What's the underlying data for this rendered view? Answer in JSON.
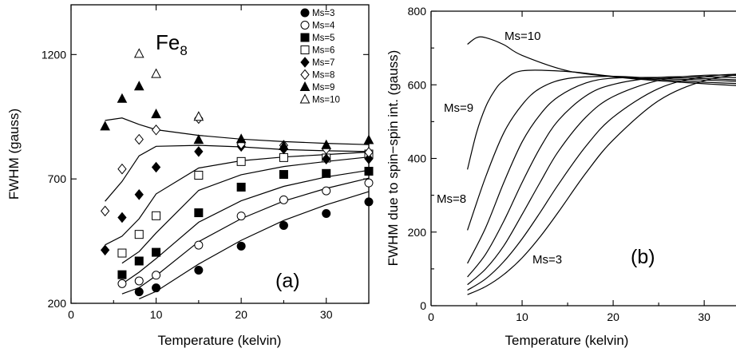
{
  "chart_data": [
    {
      "type": "scatter",
      "panel_label": "(a)",
      "title": "Fe",
      "title_subscript": "8",
      "xlabel": "Temperature (kelvin)",
      "ylabel": "FWHM (gauss)",
      "xlim": [
        0,
        35
      ],
      "ylim": [
        200,
        1400
      ],
      "xticks": [
        "0",
        "10",
        "20",
        "30"
      ],
      "yticks": [
        "200",
        "700",
        "1200"
      ],
      "legend_position": "top-right",
      "series": [
        {
          "name": "Ms=3",
          "marker": "filled-circle",
          "points": [
            [
              8,
              246
            ],
            [
              10,
              262
            ],
            [
              15,
              333
            ],
            [
              20,
              430
            ],
            [
              25,
              513
            ],
            [
              30,
              561
            ],
            [
              35,
              608
            ]
          ]
        },
        {
          "name": "Ms=4",
          "marker": "open-circle",
          "points": [
            [
              6,
              279
            ],
            [
              8,
              290
            ],
            [
              10,
              313
            ],
            [
              15,
              434
            ],
            [
              20,
              551
            ],
            [
              25,
              616
            ],
            [
              30,
              652
            ],
            [
              35,
              684
            ]
          ]
        },
        {
          "name": "Ms=5",
          "marker": "filled-square",
          "points": [
            [
              6,
              315
            ],
            [
              8,
              370
            ],
            [
              10,
              405
            ],
            [
              15,
              564
            ],
            [
              20,
              667
            ],
            [
              25,
              718
            ],
            [
              30,
              722
            ],
            [
              35,
              731
            ]
          ]
        },
        {
          "name": "Ms=6",
          "marker": "open-square",
          "points": [
            [
              6,
              402
            ],
            [
              8,
              477
            ],
            [
              10,
              552
            ],
            [
              15,
              715
            ],
            [
              20,
              770
            ],
            [
              25,
              786
            ],
            [
              30,
              784
            ],
            [
              35,
              800
            ]
          ]
        },
        {
          "name": "Ms=7",
          "marker": "filled-diamond",
          "points": [
            [
              4,
              414
            ],
            [
              6,
              545
            ],
            [
              8,
              637
            ],
            [
              10,
              747
            ],
            [
              15,
              810
            ],
            [
              20,
              831
            ],
            [
              25,
              821
            ],
            [
              30,
              780
            ],
            [
              35,
              781
            ]
          ]
        },
        {
          "name": "Ms=8",
          "marker": "open-diamond",
          "points": [
            [
              4,
              571
            ],
            [
              6,
              740
            ],
            [
              8,
              859
            ],
            [
              10,
              897
            ],
            [
              15,
              943
            ],
            [
              20,
              840
            ],
            [
              25,
              835
            ],
            [
              30,
              820
            ],
            [
              35,
              807
            ]
          ]
        },
        {
          "name": "Ms=9",
          "marker": "filled-triangle",
          "points": [
            [
              4,
              911
            ],
            [
              6,
              1022
            ],
            [
              8,
              1072
            ],
            [
              10,
              960
            ],
            [
              15,
              857
            ],
            [
              20,
              860
            ],
            [
              25,
              832
            ],
            [
              30,
              836
            ],
            [
              35,
              856
            ]
          ]
        },
        {
          "name": "Ms=10",
          "marker": "open-triangle",
          "points": [
            [
              8,
              1203
            ],
            [
              10,
              1122
            ],
            [
              15,
              950
            ]
          ]
        }
      ],
      "fit_curves": [
        {
          "x": [
            8,
            10,
            15,
            20,
            25,
            30,
            35
          ],
          "y": [
            218,
            248,
            358,
            453,
            533,
            596,
            649
          ]
        },
        {
          "x": [
            6,
            8,
            10,
            15,
            20,
            25,
            30,
            35
          ],
          "y": [
            238,
            263,
            311,
            448,
            540,
            611,
            662,
            703
          ]
        },
        {
          "x": [
            6,
            8,
            10,
            15,
            20,
            25,
            30,
            35
          ],
          "y": [
            278,
            325,
            380,
            526,
            612,
            670,
            708,
            735
          ]
        },
        {
          "x": [
            6,
            8,
            10,
            15,
            20,
            25,
            30,
            35
          ],
          "y": [
            361,
            408,
            483,
            654,
            717,
            750,
            770,
            788
          ]
        },
        {
          "x": [
            4,
            6,
            8,
            10,
            15,
            20,
            25,
            30,
            35
          ],
          "y": [
            435,
            470,
            540,
            640,
            744,
            773,
            788,
            798,
            808
          ]
        },
        {
          "x": [
            4,
            6,
            8,
            10,
            15,
            20,
            25,
            30,
            35
          ],
          "y": [
            610,
            690,
            793,
            831,
            835,
            829,
            818,
            813,
            810
          ]
        },
        {
          "x": [
            4,
            6,
            8,
            10,
            15,
            20,
            25,
            30,
            35
          ],
          "y": [
            935,
            945,
            919,
            898,
            875,
            860,
            850,
            843,
            838
          ]
        }
      ]
    },
    {
      "type": "line",
      "panel_label": "(b)",
      "xlabel": "Temperature (kelvin)",
      "ylabel": "FWHM due to spin−spin int. (gauss)",
      "xlim": [
        0,
        35
      ],
      "ylim": [
        0,
        800
      ],
      "xticks": [
        "0",
        "10",
        "20",
        "30"
      ],
      "yticks": [
        "0",
        "200",
        "400",
        "600",
        "800"
      ],
      "curve_labels": [
        "Ms=10",
        "Ms=9",
        "Ms=8",
        "Ms=3"
      ],
      "series": [
        {
          "name": "Ms=10",
          "x": [
            4,
            5,
            6,
            8,
            10,
            15,
            20,
            25,
            30,
            35
          ],
          "y": [
            710,
            728,
            728,
            709,
            680,
            638,
            622,
            611,
            603,
            596
          ]
        },
        {
          "name": "Ms=9",
          "x": [
            4,
            5,
            6,
            7,
            8,
            10,
            15,
            20,
            25,
            30,
            35
          ],
          "y": [
            370,
            470,
            540,
            585,
            612,
            638,
            636,
            623,
            614,
            607,
            602
          ]
        },
        {
          "name": "Ms=8",
          "x": [
            4,
            6,
            8,
            10,
            12,
            15,
            20,
            25,
            30,
            35
          ],
          "y": [
            205,
            350,
            470,
            546,
            591,
            617,
            623,
            617,
            613,
            608
          ]
        },
        {
          "name": "Ms=7",
          "x": [
            4,
            6,
            8,
            10,
            12,
            14,
            17,
            20,
            25,
            30,
            35
          ],
          "y": [
            115,
            212,
            335,
            445,
            520,
            568,
            605,
            618,
            620,
            617,
            612
          ]
        },
        {
          "name": "Ms=6",
          "x": [
            4,
            6,
            8,
            10,
            12,
            14,
            17,
            20,
            25,
            30,
            35
          ],
          "y": [
            78,
            140,
            230,
            335,
            430,
            504,
            570,
            601,
            620,
            622,
            618
          ]
        },
        {
          "name": "Ms=5",
          "x": [
            4,
            6,
            8,
            10,
            12,
            14,
            17,
            20,
            25,
            30,
            35
          ],
          "y": [
            57,
            100,
            163,
            248,
            336,
            420,
            512,
            568,
            612,
            626,
            624
          ]
        },
        {
          "name": "Ms=4",
          "x": [
            4,
            6,
            8,
            10,
            12,
            14,
            17,
            20,
            25,
            30,
            35
          ],
          "y": [
            42,
            73,
            120,
            182,
            254,
            330,
            433,
            512,
            590,
            622,
            630
          ]
        },
        {
          "name": "Ms=3",
          "x": [
            4,
            6,
            8,
            10,
            12,
            14,
            17,
            20,
            25,
            30,
            35
          ],
          "y": [
            30,
            52,
            85,
            130,
            188,
            255,
            360,
            450,
            557,
            611,
            632
          ]
        }
      ]
    }
  ]
}
